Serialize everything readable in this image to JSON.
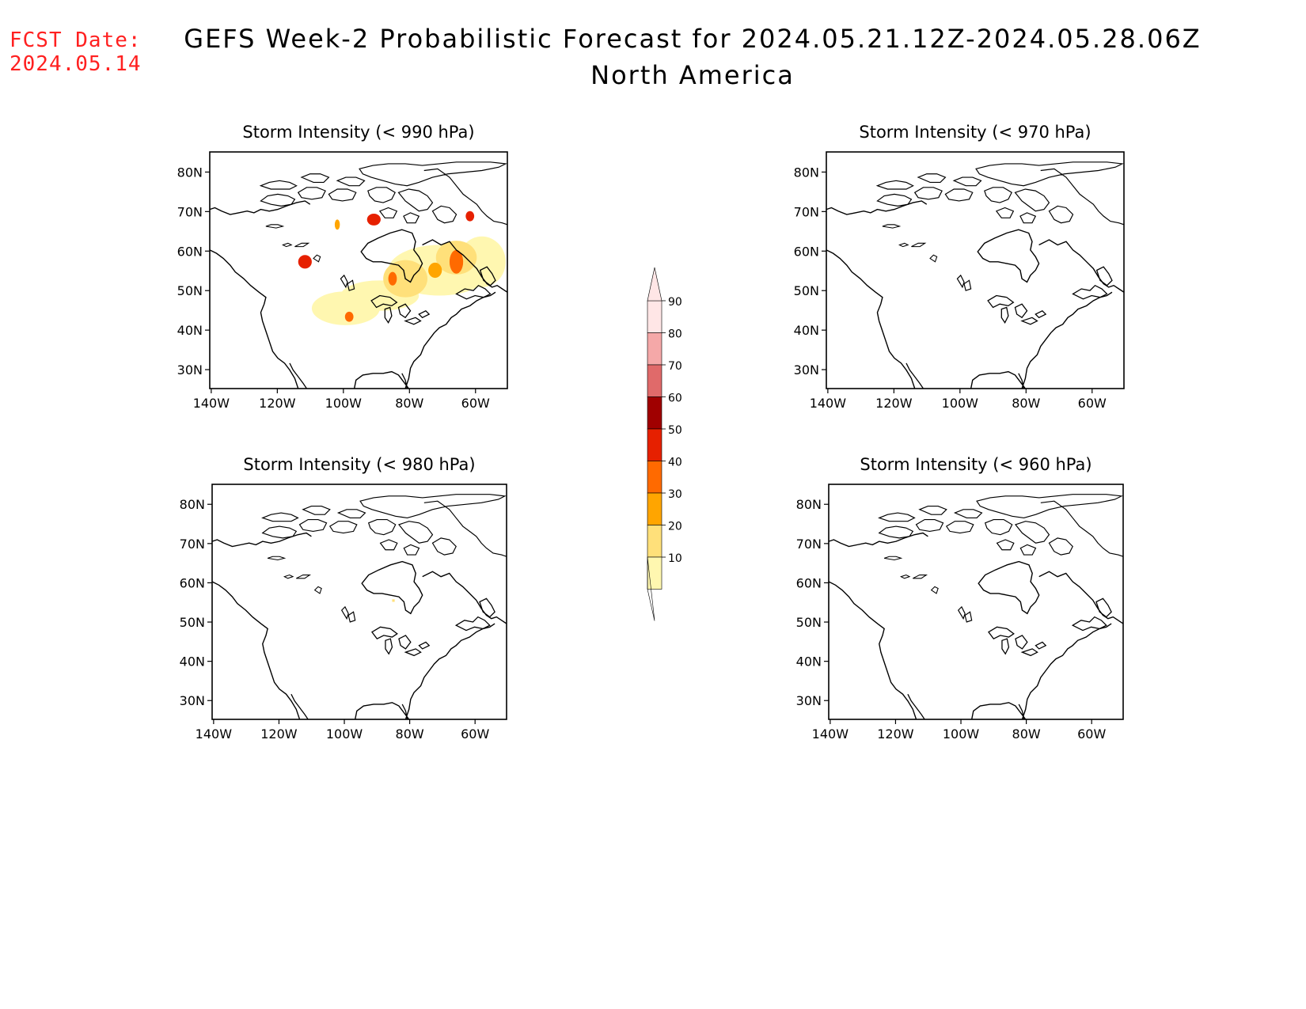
{
  "header": {
    "fcst_label": "FCST Date:",
    "fcst_date": "2024.05.14",
    "title": "GEFS Week-2 Probabilistic Forecast for 2024.05.21.12Z-2024.05.28.06Z",
    "subtitle": "North America"
  },
  "panels": [
    {
      "id": "p990",
      "title": "Storm Intensity (< 990 hPa)"
    },
    {
      "id": "p970",
      "title": "Storm Intensity (< 970 hPa)"
    },
    {
      "id": "p980",
      "title": "Storm Intensity (< 980 hPa)"
    },
    {
      "id": "p960",
      "title": "Storm Intensity (< 960 hPa)"
    }
  ],
  "axes": {
    "lat_labels": [
      "30N",
      "40N",
      "50N",
      "60N",
      "70N",
      "80N"
    ],
    "lon_labels": [
      "140W",
      "120W",
      "100W",
      "80W",
      "60W"
    ]
  },
  "colorbar": {
    "labels": [
      "10",
      "20",
      "30",
      "40",
      "50",
      "60",
      "70",
      "80",
      "90"
    ],
    "colors": [
      "#fff7b0",
      "#ffe07a",
      "#ffa500",
      "#ff6a00",
      "#e62000",
      "#a00000",
      "#e06a6a",
      "#f5a8a8",
      "#ffe6e6"
    ]
  }
}
